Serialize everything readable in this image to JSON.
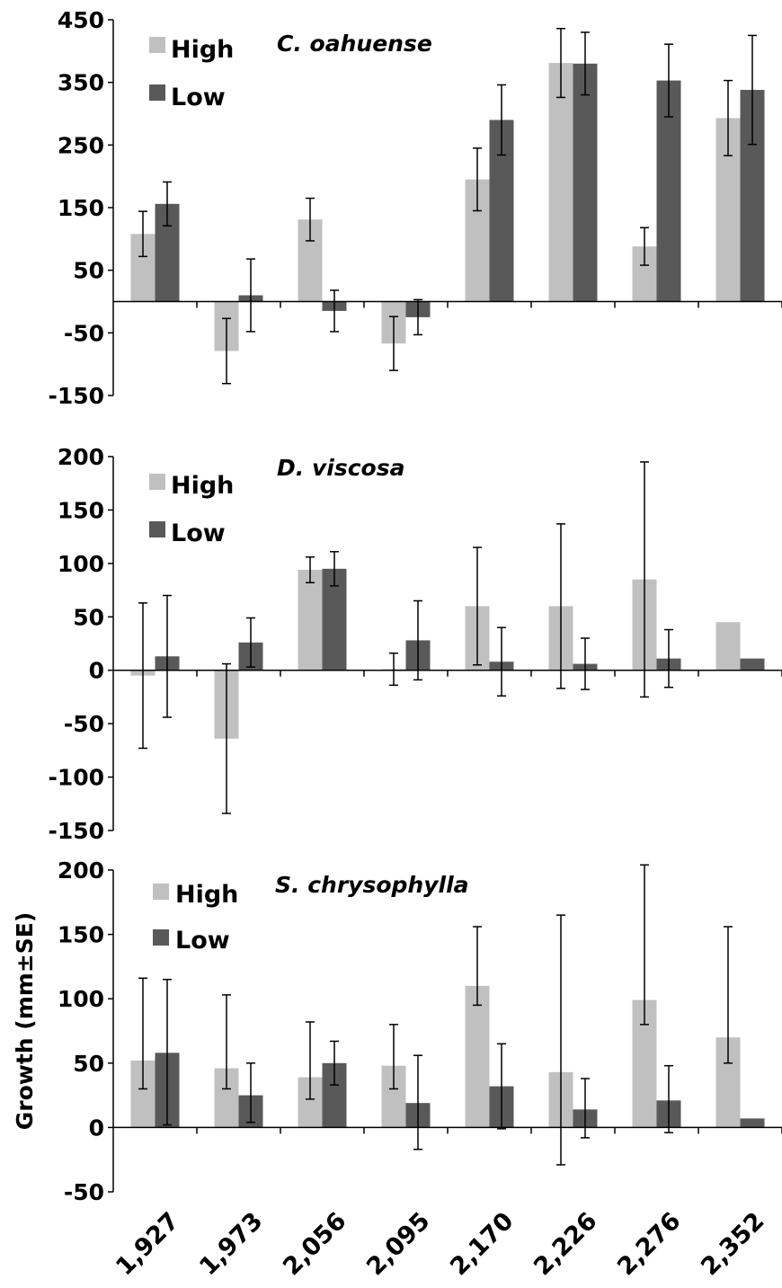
{
  "figure": {
    "categories": [
      "1,927",
      "1,973",
      "2,056",
      "2,095",
      "2,170",
      "2,226",
      "2,276",
      "2,352"
    ],
    "ylabel": "Growth (mm±SE)",
    "colors": {
      "High": "#c0c0c0",
      "Low": "#595959",
      "axis": "#000000"
    }
  },
  "chart_data": [
    {
      "type": "bar",
      "title": "C. oahuense",
      "categories": [
        "1,927",
        "1,973",
        "2,056",
        "2,095",
        "2,170",
        "2,226",
        "2,276",
        "2,352"
      ],
      "ylim": [
        -150,
        450
      ],
      "yticks": [
        450,
        350,
        250,
        150,
        50,
        -50,
        -150
      ],
      "legend": {
        "placement": "top-left",
        "entries": [
          "High",
          "Low"
        ]
      },
      "series": [
        {
          "name": "High",
          "values": [
            108,
            -79,
            131,
            -67,
            195,
            381,
            88,
            293
          ],
          "err": [
            36,
            52,
            34,
            43,
            50,
            55,
            30,
            60
          ]
        },
        {
          "name": "Low",
          "values": [
            156,
            10,
            -15,
            -25,
            290,
            380,
            353,
            338
          ],
          "err": [
            35,
            58,
            33,
            28,
            56,
            50,
            58,
            87
          ]
        }
      ]
    },
    {
      "type": "bar",
      "title": "D. viscosa",
      "categories": [
        "1,927",
        "1,973",
        "2,056",
        "2,095",
        "2,170",
        "2,226",
        "2,276",
        "2,352"
      ],
      "ylim": [
        -150,
        200
      ],
      "yticks": [
        200,
        150,
        100,
        50,
        0,
        -50,
        -100,
        -150
      ],
      "legend": {
        "placement": "top-left",
        "entries": [
          "High",
          "Low"
        ]
      },
      "series": [
        {
          "name": "High",
          "values": [
            -5,
            -64,
            94,
            1,
            60,
            60,
            85,
            45
          ],
          "err": [
            68,
            70,
            12,
            15,
            55,
            77,
            110,
            0
          ]
        },
        {
          "name": "Low",
          "values": [
            13,
            26,
            95,
            28,
            8,
            6,
            11,
            11
          ],
          "err": [
            57,
            23,
            16,
            37,
            32,
            24,
            27,
            0
          ]
        }
      ]
    },
    {
      "type": "bar",
      "title": "S. chrysophylla",
      "categories": [
        "1,927",
        "1,973",
        "2,056",
        "2,095",
        "2,170",
        "2,226",
        "2,276",
        "2,352"
      ],
      "ylim": [
        -50,
        200
      ],
      "yticks": [
        200,
        150,
        100,
        50,
        0,
        -50
      ],
      "ylabel": "Growth (mm±SE)",
      "legend": {
        "placement": "top-left",
        "entries": [
          "High",
          "Low"
        ]
      },
      "series": [
        {
          "name": "High",
          "values": [
            52,
            46,
            39,
            48,
            110,
            43,
            99,
            70
          ],
          "err": [
            [
              22,
              64
            ],
            [
              16,
              57
            ],
            [
              17,
              43
            ],
            [
              18,
              32
            ],
            [
              15,
              46
            ],
            [
              72,
              122
            ],
            [
              19,
              105
            ],
            [
              20,
              86
            ]
          ]
        },
        {
          "name": "Low",
          "values": [
            58,
            25,
            50,
            19,
            32,
            14,
            21,
            7
          ],
          "err": [
            [
              56,
              57
            ],
            [
              21,
              25
            ],
            [
              17,
              17
            ],
            [
              36,
              37
            ],
            [
              33,
              33
            ],
            [
              22,
              24
            ],
            [
              25,
              27
            ],
            [
              0,
              0
            ]
          ]
        }
      ]
    }
  ]
}
